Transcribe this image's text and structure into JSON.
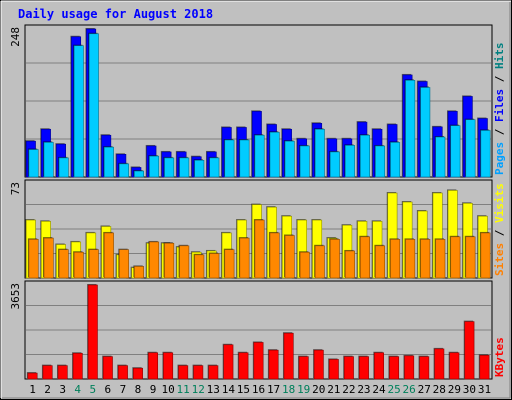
{
  "chart_data": {
    "type": "bar",
    "title": "Daily usage for August 2018",
    "categories": [
      "1",
      "2",
      "3",
      "4",
      "5",
      "6",
      "7",
      "8",
      "9",
      "10",
      "11",
      "12",
      "13",
      "14",
      "15",
      "16",
      "17",
      "18",
      "19",
      "20",
      "21",
      "22",
      "23",
      "24",
      "25",
      "26",
      "27",
      "28",
      "29",
      "30",
      "31"
    ],
    "weekend_days": [
      4,
      5,
      11,
      12,
      18,
      19,
      25,
      26
    ],
    "panels": [
      {
        "name": "top",
        "ymax_label": "248",
        "ymax": 248,
        "legend": [
          {
            "text": "Pages",
            "color": "#00a0ff"
          },
          {
            "text": "Files",
            "color": "#0000ff"
          },
          {
            "text": "Hits",
            "color": "#008080"
          }
        ],
        "series": [
          {
            "name": "Hits",
            "color": "#0000ff",
            "values": [
              60,
              80,
              55,
              235,
              248,
              70,
              38,
              16,
              52,
              42,
              42,
              34,
              42,
              83,
              83,
              110,
              88,
              80,
              64,
              90,
              64,
              64,
              92,
              80,
              88,
              171,
              160,
              84,
              110,
              135,
              98
            ]
          },
          {
            "name": "Files",
            "color": "#00ccff",
            "values": [
              46,
              58,
              32,
              220,
              240,
              50,
              22,
              10,
              35,
              32,
              32,
              28,
              32,
              62,
              62,
              70,
              75,
              60,
              52,
              80,
              42,
              53,
              70,
              52,
              58,
              162,
              150,
              67,
              86,
              96,
              78
            ]
          }
        ]
      },
      {
        "name": "middle",
        "ymax_label": "73",
        "ymax": 73,
        "legend": [
          {
            "text": "Sites",
            "color": "#ff8000"
          },
          {
            "text": "Visits",
            "color": "#ffff00"
          }
        ],
        "series": [
          {
            "name": "Visits",
            "color": "#ffff00",
            "values": [
              45,
              44,
              26,
              28,
              35,
              40,
              18,
              8,
              27,
              27,
              24,
              20,
              21,
              35,
              45,
              57,
              55,
              48,
              45,
              45,
              31,
              41,
              44,
              44,
              66,
              59,
              52,
              66,
              68,
              58,
              48
            ]
          },
          {
            "name": "Sites",
            "color": "#ff8800",
            "values": [
              30,
              31,
              22,
              20,
              22,
              35,
              22,
              9,
              28,
              27,
              25,
              18,
              19,
              22,
              31,
              45,
              35,
              33,
              20,
              25,
              30,
              21,
              32,
              25,
              30,
              30,
              30,
              30,
              32,
              32,
              35
            ]
          }
        ]
      },
      {
        "name": "bottom",
        "ymax_label": "3653",
        "ymax": 3653,
        "legend": [
          {
            "text": "KBytes",
            "color": "#ff0000"
          }
        ],
        "series": [
          {
            "name": "KBytes",
            "color": "#ff0000",
            "values": [
              230,
              520,
              520,
              1000,
              3653,
              870,
              520,
              420,
              1020,
              1020,
              520,
              520,
              520,
              1330,
              1020,
              1420,
              1120,
              1780,
              870,
              1120,
              760,
              870,
              870,
              1020,
              870,
              900,
              870,
              1170,
              1020,
              2230,
              920
            ]
          }
        ]
      }
    ]
  },
  "colors": {
    "background": "#c0c0c0",
    "title_color": "#0000ff",
    "weekend_label": "#00805b",
    "weekday_label": "#000000"
  }
}
